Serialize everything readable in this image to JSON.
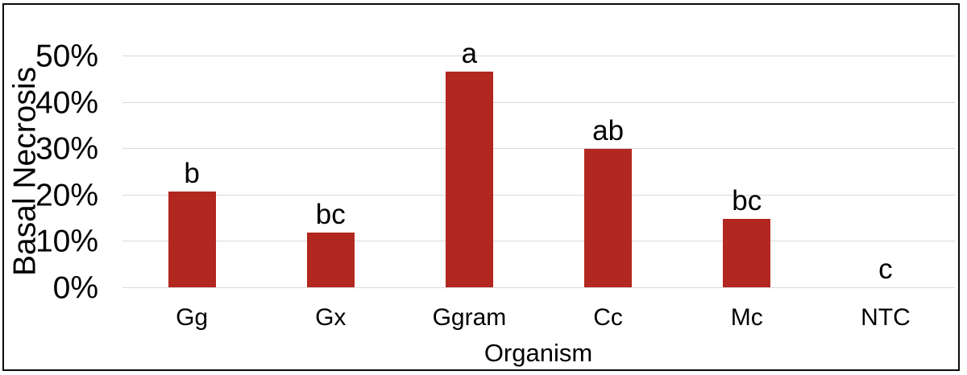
{
  "chart_data": {
    "type": "bar",
    "title": "",
    "xlabel": "Organism",
    "ylabel": "Basal Necrosis",
    "categories": [
      "Gg",
      "Gx",
      "Ggram",
      "Cc",
      "Mc",
      "NTC"
    ],
    "values": [
      20.7,
      11.8,
      46.6,
      29.9,
      14.8,
      0
    ],
    "bar_labels": [
      "b",
      "bc",
      "a",
      "ab",
      "bc",
      "c"
    ],
    "y_ticks": [
      "0%",
      "10%",
      "20%",
      "30%",
      "40%",
      "50%"
    ],
    "y_tick_values": [
      0,
      10,
      20,
      30,
      40,
      50
    ],
    "ylim": [
      0,
      50
    ],
    "grid": true,
    "legend_position": "none",
    "bar_color": "#B2271F",
    "gridline_color": "#D9D9D9",
    "frame_color": "#0A0A0A",
    "text_color": "#000000",
    "background_color": "#FFFFFF"
  }
}
